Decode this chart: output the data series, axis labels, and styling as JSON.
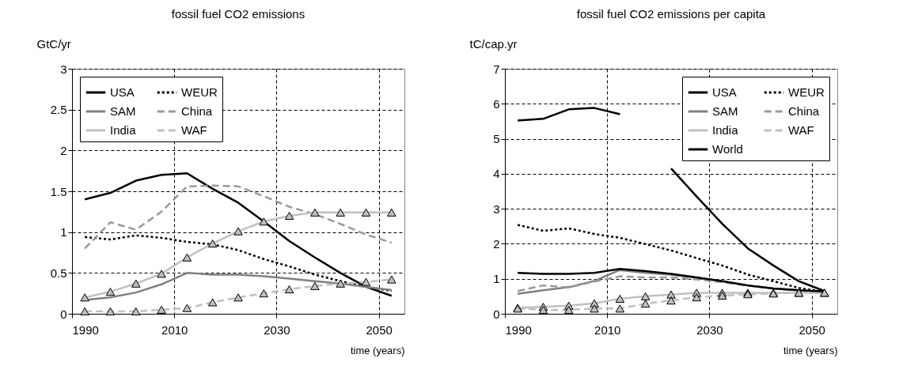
{
  "chart_data": [
    {
      "type": "line",
      "title": "fossil fuel CO2 emissions",
      "xlabel": "time (years)",
      "ylabel": "GtC/yr",
      "x": [
        1992.5,
        1997.5,
        2002.5,
        2007.5,
        2012.5,
        2017.5,
        2022.5,
        2027.5,
        2032.5,
        2037.5,
        2042.5,
        2047.5,
        2052.5
      ],
      "xlim": [
        1990,
        2055
      ],
      "xticks": [
        1990,
        2010,
        2030,
        2050
      ],
      "ylim": [
        0,
        3
      ],
      "yticks": [
        0,
        0.5,
        1,
        1.5,
        2,
        2.5,
        3
      ],
      "grid": true,
      "legend": "top left",
      "series": [
        {
          "name": "USA",
          "color": "#000000",
          "line_style": "solid",
          "values": [
            1.4,
            1.48,
            1.63,
            1.7,
            1.72,
            1.53,
            1.36,
            1.13,
            0.89,
            0.69,
            0.5,
            0.33,
            0.22
          ]
        },
        {
          "name": "WEUR",
          "color": "#000000",
          "line_style": "dotted",
          "values": [
            0.94,
            0.91,
            0.96,
            0.93,
            0.88,
            0.85,
            0.78,
            0.67,
            0.58,
            0.48,
            0.4,
            0.33,
            0.28
          ]
        },
        {
          "name": "SAM",
          "color": "#808080",
          "line_style": "solid",
          "values": [
            0.17,
            0.2,
            0.26,
            0.36,
            0.5,
            0.48,
            0.48,
            0.46,
            0.43,
            0.4,
            0.37,
            0.33,
            0.29
          ]
        },
        {
          "name": "China",
          "color": "#999999",
          "line_style": "dashed",
          "values": [
            0.8,
            1.12,
            1.03,
            1.25,
            1.56,
            1.57,
            1.56,
            1.44,
            1.31,
            1.22,
            1.1,
            0.97,
            0.87
          ]
        },
        {
          "name": "India",
          "color": "#c0c0c0",
          "line_style": "solid",
          "marker": "triangle",
          "values": [
            0.2,
            0.27,
            0.37,
            0.49,
            0.69,
            0.86,
            1.01,
            1.13,
            1.2,
            1.24,
            1.24,
            1.24,
            1.24
          ]
        },
        {
          "name": "WAF",
          "color": "#c0c0c0",
          "line_style": "dashed",
          "marker": "triangle",
          "values": [
            0.03,
            0.03,
            0.03,
            0.05,
            0.07,
            0.14,
            0.2,
            0.25,
            0.3,
            0.34,
            0.37,
            0.39,
            0.42
          ]
        }
      ]
    },
    {
      "type": "line",
      "title": "fossil fuel CO2 emissions per capita",
      "xlabel": "time (years)",
      "ylabel": "tC/cap.yr",
      "x": [
        1992.5,
        1997.5,
        2002.5,
        2007.5,
        2012.5,
        2017.5,
        2022.5,
        2027.5,
        2032.5,
        2037.5,
        2042.5,
        2047.5,
        2052.5
      ],
      "xlim": [
        1990,
        2055
      ],
      "xticks": [
        1990,
        2010,
        2030,
        2050
      ],
      "ylim": [
        0,
        7
      ],
      "yticks": [
        0,
        1,
        2,
        3,
        4,
        5,
        6,
        7
      ],
      "grid": true,
      "legend": "top right",
      "series": [
        {
          "name": "USA",
          "color": "#000000",
          "line_style": "solid",
          "values": [
            5.52,
            5.57,
            5.84,
            5.88,
            5.7,
            null,
            4.15,
            3.35,
            2.57,
            1.87,
            1.38,
            0.93,
            0.65
          ]
        },
        {
          "name": "WEUR",
          "color": "#000000",
          "line_style": "dotted",
          "values": [
            2.54,
            2.37,
            2.44,
            2.28,
            2.17,
            1.99,
            1.81,
            1.59,
            1.38,
            1.12,
            0.93,
            0.74,
            0.62
          ]
        },
        {
          "name": "SAM",
          "color": "#808080",
          "line_style": "solid",
          "values": [
            0.57,
            0.67,
            0.76,
            0.94,
            1.25,
            1.17,
            1.12,
            1.03,
            0.93,
            0.81,
            0.72,
            0.67,
            0.62
          ]
        },
        {
          "name": "China",
          "color": "#999999",
          "line_style": "dashed",
          "values": [
            0.65,
            0.81,
            0.75,
            0.92,
            1.07,
            1.04,
            1.04,
            0.98,
            0.9,
            0.8,
            0.72,
            0.67,
            0.62
          ]
        },
        {
          "name": "India",
          "color": "#c0c0c0",
          "line_style": "solid",
          "marker": "triangle",
          "values": [
            0.17,
            0.2,
            0.23,
            0.3,
            0.43,
            0.5,
            0.55,
            0.6,
            0.6,
            0.6,
            0.6,
            0.6,
            0.6
          ]
        },
        {
          "name": "WAF",
          "color": "#c0c0c0",
          "line_style": "dashed",
          "marker": "triangle",
          "values": [
            0.15,
            0.11,
            0.11,
            0.15,
            0.15,
            0.29,
            0.38,
            0.47,
            0.52,
            0.56,
            0.58,
            0.6,
            0.6
          ]
        },
        {
          "name": "World",
          "color": "#000000",
          "line_style": "solid",
          "values": [
            1.17,
            1.14,
            1.14,
            1.17,
            1.28,
            1.22,
            1.14,
            1.04,
            0.93,
            0.81,
            0.72,
            0.67,
            0.64
          ]
        }
      ]
    }
  ]
}
